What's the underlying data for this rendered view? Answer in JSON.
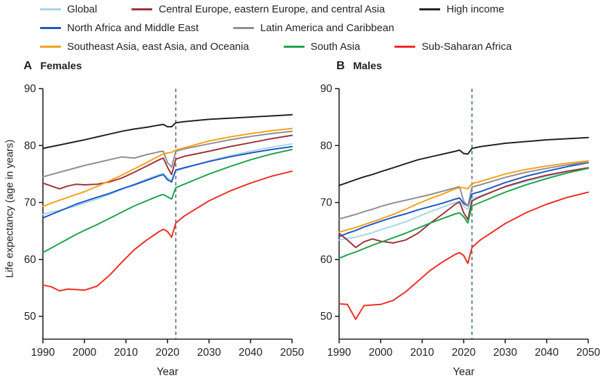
{
  "figure": {
    "ylabel": "Life expectancy (age in years)",
    "axis_color": "#231f20",
    "event_line": {
      "year": 2022,
      "color": "#4f7384"
    }
  },
  "legend": {
    "rows": [
      [
        {
          "label": "Global",
          "color": "#a5d7e8"
        },
        {
          "label": "Central Europe, eastern Europe, and central Asia",
          "color": "#9e3039"
        },
        {
          "label": "High income",
          "color": "#231f20"
        }
      ],
      [
        {
          "label": "North Africa and Middle East",
          "color": "#1a56c4"
        },
        {
          "label": "Latin America and Caribbean",
          "color": "#8e8e8e"
        }
      ],
      [
        {
          "label": "Southeast Asia, east Asia, and Oceania",
          "color": "#f6a01b"
        },
        {
          "label": "South Asia",
          "color": "#1ba24c"
        },
        {
          "label": "Sub-Saharan Africa",
          "color": "#ee2b24"
        }
      ]
    ]
  },
  "chart_data": [
    {
      "type": "line",
      "panel_letter": "A",
      "title": "Females",
      "xlabel": "Year",
      "xlim": [
        1990,
        2050
      ],
      "ylim": [
        46,
        90
      ],
      "xticks": [
        1990,
        2000,
        2010,
        2020,
        2030,
        2040,
        2050
      ],
      "yticks": [
        50,
        60,
        70,
        80,
        90
      ],
      "event_year": 2022,
      "x": [
        1990,
        1992,
        1994,
        1996,
        1998,
        2000,
        2003,
        2006,
        2009,
        2012,
        2015,
        2018,
        2019,
        2020,
        2021,
        2022,
        2024,
        2030,
        2035,
        2040,
        2045,
        2050
      ],
      "series": [
        {
          "name": "Global",
          "color": "#a5d7e8",
          "values": [
            67.9,
            68.3,
            68.6,
            69.0,
            69.4,
            69.9,
            70.6,
            71.4,
            72.3,
            73.2,
            74.1,
            74.9,
            75.1,
            74.3,
            73.9,
            75.5,
            76.0,
            77.3,
            78.2,
            79.0,
            79.7,
            80.3
          ]
        },
        {
          "name": "Central Europe, eastern Europe, and central Asia",
          "color": "#9e3039",
          "values": [
            73.4,
            72.9,
            72.4,
            72.9,
            73.2,
            73.1,
            73.2,
            73.6,
            74.3,
            75.3,
            76.4,
            77.5,
            77.8,
            76.2,
            74.9,
            77.6,
            78.1,
            79.0,
            79.8,
            80.5,
            81.2,
            81.8
          ]
        },
        {
          "name": "High income",
          "color": "#231f20",
          "values": [
            79.5,
            79.8,
            80.1,
            80.4,
            80.7,
            81.0,
            81.5,
            82.0,
            82.5,
            82.9,
            83.2,
            83.6,
            83.7,
            83.3,
            83.3,
            84.0,
            84.2,
            84.6,
            84.8,
            85.0,
            85.2,
            85.4
          ]
        },
        {
          "name": "North Africa and Middle East",
          "color": "#1a56c4",
          "values": [
            67.3,
            67.9,
            68.5,
            69.1,
            69.7,
            70.2,
            70.9,
            71.6,
            72.4,
            73.1,
            73.9,
            74.7,
            74.9,
            74.0,
            73.6,
            75.7,
            76.1,
            77.2,
            78.0,
            78.7,
            79.3,
            79.8
          ]
        },
        {
          "name": "Latin America and Caribbean",
          "color": "#8e8e8e",
          "values": [
            74.5,
            74.9,
            75.3,
            75.7,
            76.1,
            76.5,
            77.0,
            77.5,
            78.0,
            77.8,
            78.4,
            78.9,
            79.0,
            77.0,
            76.2,
            79.0,
            79.4,
            80.3,
            81.0,
            81.6,
            82.1,
            82.5
          ]
        },
        {
          "name": "Southeast Asia, east Asia, and Oceania",
          "color": "#f6a01b",
          "values": [
            69.3,
            69.9,
            70.4,
            70.9,
            71.4,
            71.9,
            72.8,
            73.8,
            74.8,
            75.9,
            77.0,
            78.2,
            78.5,
            78.7,
            78.8,
            79.2,
            79.6,
            80.8,
            81.5,
            82.1,
            82.6,
            83.0
          ]
        },
        {
          "name": "South Asia",
          "color": "#1ba24c",
          "values": [
            61.2,
            62.0,
            62.8,
            63.6,
            64.4,
            65.1,
            66.1,
            67.2,
            68.3,
            69.4,
            70.3,
            71.2,
            71.4,
            71.0,
            70.6,
            72.6,
            73.2,
            75.0,
            76.3,
            77.5,
            78.5,
            79.3
          ]
        },
        {
          "name": "Sub-Saharan Africa",
          "color": "#ee2b24",
          "values": [
            55.5,
            55.2,
            54.5,
            54.8,
            54.7,
            54.6,
            55.3,
            57.2,
            59.5,
            61.7,
            63.4,
            64.9,
            65.3,
            64.9,
            63.9,
            66.4,
            67.6,
            70.3,
            72.0,
            73.4,
            74.6,
            75.5
          ]
        }
      ]
    },
    {
      "type": "line",
      "panel_letter": "B",
      "title": "Males",
      "xlabel": "Year",
      "xlim": [
        1990,
        2050
      ],
      "ylim": [
        46,
        90
      ],
      "xticks": [
        1990,
        2000,
        2010,
        2020,
        2030,
        2040,
        2050
      ],
      "yticks": [
        50,
        60,
        70,
        80,
        90
      ],
      "event_year": 2022,
      "x": [
        1990,
        1992,
        1994,
        1996,
        1998,
        2000,
        2003,
        2006,
        2009,
        2012,
        2015,
        2018,
        2019,
        2020,
        2021,
        2022,
        2024,
        2030,
        2035,
        2040,
        2045,
        2050
      ],
      "series": [
        {
          "name": "Global",
          "color": "#a5d7e8",
          "values": [
            63.4,
            63.7,
            63.9,
            64.3,
            64.7,
            65.2,
            65.9,
            66.6,
            67.5,
            68.4,
            69.2,
            70.0,
            70.2,
            69.3,
            68.8,
            70.7,
            71.2,
            72.7,
            73.7,
            74.6,
            75.4,
            76.1
          ]
        },
        {
          "name": "Central Europe, eastern Europe, and central Asia",
          "color": "#9e3039",
          "values": [
            64.6,
            63.4,
            62.1,
            63.1,
            63.6,
            63.2,
            62.9,
            63.4,
            64.6,
            66.4,
            68.0,
            69.7,
            70.1,
            68.2,
            67.0,
            70.3,
            71.0,
            72.8,
            73.9,
            74.8,
            75.5,
            76.1
          ]
        },
        {
          "name": "High income",
          "color": "#231f20",
          "values": [
            73.0,
            73.5,
            74.0,
            74.5,
            74.9,
            75.4,
            76.1,
            76.8,
            77.5,
            78.0,
            78.5,
            79.0,
            79.2,
            78.6,
            78.5,
            79.5,
            79.8,
            80.4,
            80.7,
            81.0,
            81.2,
            81.4
          ]
        },
        {
          "name": "North Africa and Middle East",
          "color": "#1a56c4",
          "values": [
            64.0,
            64.6,
            65.1,
            65.7,
            66.2,
            66.7,
            67.4,
            68.0,
            68.7,
            69.3,
            69.9,
            70.6,
            70.8,
            69.8,
            69.4,
            71.5,
            71.9,
            73.5,
            74.6,
            75.5,
            76.3,
            77.0
          ]
        },
        {
          "name": "Latin America and Caribbean",
          "color": "#8e8e8e",
          "values": [
            67.1,
            67.5,
            67.9,
            68.4,
            68.8,
            69.3,
            69.9,
            70.4,
            70.9,
            71.4,
            72.0,
            72.6,
            72.8,
            70.2,
            69.4,
            72.7,
            73.1,
            74.4,
            75.3,
            76.0,
            76.6,
            77.1
          ]
        },
        {
          "name": "Southeast Asia, east Asia, and Oceania",
          "color": "#f6a01b",
          "values": [
            64.8,
            65.2,
            65.6,
            66.1,
            66.6,
            67.1,
            67.9,
            68.8,
            69.8,
            70.7,
            71.5,
            72.4,
            72.6,
            72.6,
            72.4,
            73.3,
            73.7,
            75.0,
            75.8,
            76.4,
            76.9,
            77.3
          ]
        },
        {
          "name": "South Asia",
          "color": "#1ba24c",
          "values": [
            60.2,
            60.8,
            61.3,
            61.9,
            62.5,
            63.0,
            63.8,
            64.6,
            65.5,
            66.4,
            67.2,
            68.0,
            68.2,
            67.5,
            66.4,
            69.4,
            70.0,
            71.8,
            73.1,
            74.2,
            75.2,
            76.0
          ]
        },
        {
          "name": "Sub-Saharan Africa",
          "color": "#ee2b24",
          "values": [
            52.2,
            52.1,
            49.5,
            51.9,
            52.0,
            52.1,
            52.8,
            54.3,
            56.2,
            58.1,
            59.6,
            60.9,
            61.2,
            60.7,
            59.3,
            62.1,
            63.4,
            66.3,
            68.2,
            69.7,
            70.9,
            71.8
          ]
        }
      ]
    }
  ]
}
